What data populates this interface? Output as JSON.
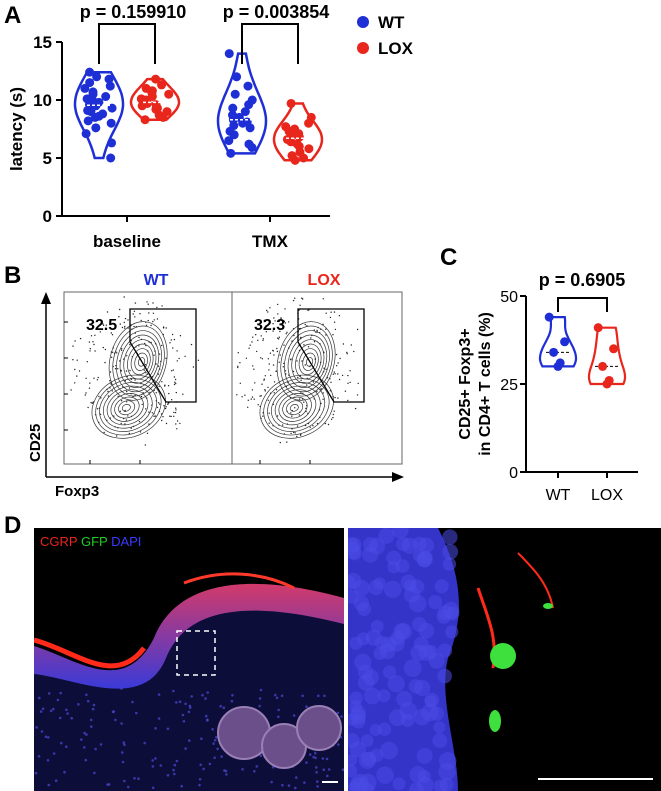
{
  "panels": {
    "a": "A",
    "b": "B",
    "c": "C",
    "d": "D"
  },
  "colors": {
    "wt": "#1f2fd6",
    "lox": "#e8261c",
    "axis": "#000000"
  },
  "chart_data": [
    {
      "type": "violin-scatter",
      "ylabel": "latency (s)",
      "ylim": [
        0,
        15
      ],
      "yticks": [
        "0",
        "5",
        "10",
        "15"
      ],
      "categories": [
        "baseline",
        "TMX"
      ],
      "legend": [
        "WT",
        "LOX"
      ],
      "annotations": [
        "p = 0.159910",
        "p = 0.003854"
      ],
      "series": [
        {
          "name": "WT",
          "values": [
            [
              5.0,
              6.3,
              7.1,
              7.6,
              8.0,
              8.2,
              8.5,
              8.6,
              8.8,
              9.0,
              9.1,
              9.3,
              9.5,
              9.6,
              9.8,
              10.0,
              10.1,
              10.3,
              10.5,
              10.7,
              11.0,
              11.2,
              11.5,
              11.8,
              12.0,
              12.4
            ],
            [
              5.4,
              5.9,
              6.2,
              6.5,
              7.0,
              7.3,
              7.6,
              7.8,
              8.0,
              8.1,
              8.3,
              8.5,
              8.7,
              9.0,
              9.3,
              9.6,
              10.0,
              10.5,
              11.2,
              12.0,
              14.0
            ]
          ]
        },
        {
          "name": "LOX",
          "values": [
            [
              8.3,
              8.5,
              8.7,
              9.0,
              9.2,
              9.3,
              9.5,
              9.6,
              9.7,
              9.8,
              10.0,
              10.1,
              10.3,
              10.5,
              10.6,
              10.8,
              11.0,
              11.3,
              11.8
            ],
            [
              4.8,
              5.0,
              5.2,
              5.5,
              5.8,
              6.0,
              6.2,
              6.4,
              6.6,
              6.8,
              7.0,
              7.1,
              7.3,
              7.5,
              7.7,
              8.0,
              8.5,
              9.7
            ]
          ]
        }
      ]
    },
    {
      "type": "flow-contour",
      "xlabel": "Foxp3",
      "ylabel": "CD25",
      "facets": [
        {
          "name": "WT",
          "gate_value": "32.5"
        },
        {
          "name": "LOX",
          "gate_value": "32.3"
        }
      ]
    },
    {
      "type": "violin-scatter",
      "ylabel": "CD25+ Foxp3+ in CD4+ T cells (%)",
      "ylabel_lines": [
        "CD25+ Foxp3+",
        "in CD4+ T cells (%)"
      ],
      "ylim": [
        0,
        50
      ],
      "yticks": [
        "0",
        "25",
        "50"
      ],
      "categories": [
        "WT",
        "LOX"
      ],
      "annotations": [
        "p = 0.6905"
      ],
      "series": [
        {
          "name": "WT",
          "values": [
            30.0,
            31.0,
            34.0,
            37.0,
            44.0
          ]
        },
        {
          "name": "LOX",
          "values": [
            25.0,
            26.0,
            30.0,
            35.0,
            41.0
          ]
        }
      ]
    }
  ],
  "microscopy": {
    "legend": {
      "cgrp": "CGRP",
      "gfp": "GFP",
      "dapi": "DAPI"
    },
    "legend_colors": {
      "cgrp": "#e8261c",
      "gfp": "#22cc22",
      "dapi": "#3a3aff"
    }
  }
}
